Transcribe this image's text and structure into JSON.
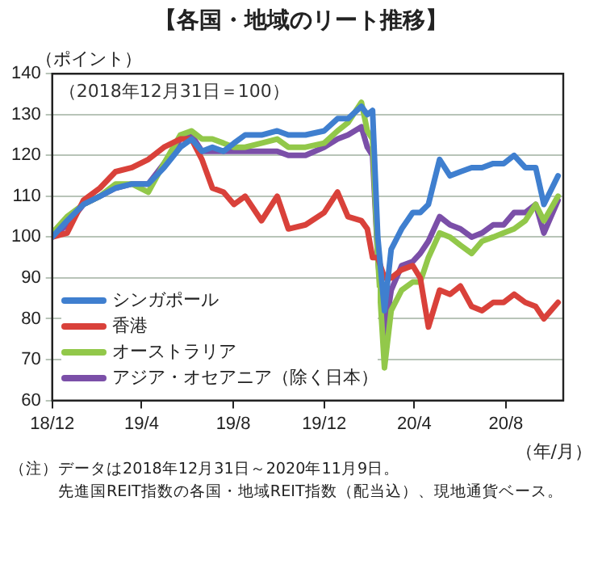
{
  "chart_data": {
    "type": "line",
    "title": "【各国・地域のリート推移】",
    "xlabel": "（年/月）",
    "ylabel": "（ポイント）",
    "annotations": [
      "（2018年12月31日＝100）",
      "（注）データは2018年12月31日～2020年11月9日。",
      "先進国REIT指数の各国・地域REIT指数（配当込）、現地通貨ベース。"
    ],
    "x": [
      "2018-12-31",
      "2019-01-20",
      "2019-02-11",
      "2019-03-05",
      "2019-03-26",
      "2019-04-17",
      "2019-05-09",
      "2019-05-30",
      "2019-06-21",
      "2019-07-06",
      "2019-07-20",
      "2019-08-03",
      "2019-08-18",
      "2019-09-01",
      "2019-09-16",
      "2019-10-08",
      "2019-10-29",
      "2019-11-13",
      "2019-12-06",
      "2019-12-31",
      "2020-01-18",
      "2020-02-01",
      "2020-02-19",
      "2020-02-27",
      "2020-03-05",
      "2020-03-12",
      "2020-03-21",
      "2020-03-30",
      "2020-04-13",
      "2020-04-28",
      "2020-05-08",
      "2020-05-19",
      "2020-06-03",
      "2020-06-17",
      "2020-07-01",
      "2020-07-16",
      "2020-07-30",
      "2020-08-14",
      "2020-08-28",
      "2020-09-11",
      "2020-09-26",
      "2020-10-10",
      "2020-10-21",
      "2020-11-09"
    ],
    "series": [
      {
        "name": "シンガポール",
        "color": "#3f7fcf",
        "values": [
          100,
          104,
          108,
          110,
          112,
          113,
          113,
          117,
          122,
          124,
          121,
          122,
          121,
          123,
          125,
          125,
          126,
          125,
          125,
          126,
          129,
          129,
          132,
          130,
          131,
          100,
          82,
          97,
          102,
          106,
          106,
          108,
          119,
          115,
          116,
          117,
          117,
          118,
          118,
          120,
          117,
          117,
          108,
          115
        ]
      },
      {
        "name": "香港",
        "color": "#d9413a",
        "values": [
          100,
          101,
          109,
          112,
          116,
          117,
          119,
          122,
          124,
          124,
          119,
          112,
          111,
          108,
          110,
          104,
          110,
          102,
          103,
          106,
          111,
          105,
          104,
          102,
          95,
          95,
          90,
          90,
          92,
          93,
          90,
          78,
          87,
          86,
          88,
          83,
          82,
          84,
          84,
          86,
          84,
          83,
          80,
          84
        ]
      },
      {
        "name": "オーストラリア",
        "color": "#92c84a",
        "values": [
          101,
          105,
          108,
          110,
          113,
          113,
          111,
          118,
          125,
          126,
          124,
          124,
          123,
          122,
          122,
          123,
          124,
          122,
          122,
          123,
          126,
          128,
          133,
          126,
          124,
          95,
          68,
          82,
          87,
          89,
          89,
          95,
          101,
          100,
          98,
          96,
          99,
          100,
          101,
          102,
          104,
          108,
          104,
          110
        ]
      },
      {
        "name": "アジア・オセアニア（除く日本）",
        "color": "#7b4fa8",
        "values": [
          100,
          103,
          108,
          110,
          112,
          113,
          113,
          118,
          124,
          125,
          121,
          121,
          121,
          121,
          121,
          121,
          121,
          120,
          120,
          122,
          124,
          125,
          127,
          122,
          120,
          95,
          76,
          87,
          93,
          94,
          96,
          99,
          105,
          103,
          102,
          100,
          101,
          103,
          103,
          106,
          106,
          108,
          101,
          109
        ]
      }
    ],
    "xlim": [
      "2018-12-31",
      "2020-11-16"
    ],
    "xticks": [
      {
        "value": "2018-12-31",
        "label": "18/12"
      },
      {
        "value": "2019-04-30",
        "label": "19/4"
      },
      {
        "value": "2019-08-31",
        "label": "19/8"
      },
      {
        "value": "2019-12-31",
        "label": "19/12"
      },
      {
        "value": "2020-04-30",
        "label": "20/4"
      },
      {
        "value": "2020-08-31",
        "label": "20/8"
      }
    ],
    "ylim": [
      60,
      140
    ],
    "yticks": [
      60,
      70,
      80,
      90,
      100,
      110,
      120,
      130,
      140
    ],
    "grid": "y",
    "legend": "bottom left",
    "marker": "none",
    "line_style": "solid"
  }
}
